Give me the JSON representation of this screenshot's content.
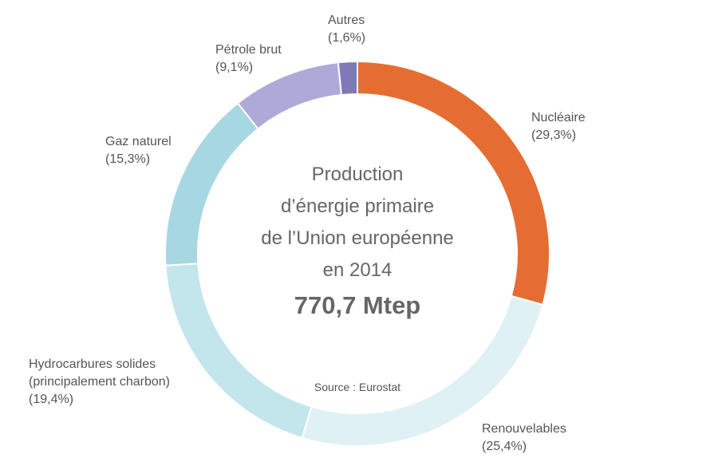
{
  "chart_data": {
    "type": "pie",
    "variant": "donut",
    "title_lines": [
      "Production",
      "d’énergie primaire",
      "de l’Union européenne",
      "en 2014"
    ],
    "total": "770,7 Mtep",
    "source": "Source : Eurostat",
    "slices": [
      {
        "name": "Nucléaire",
        "value": 29.3,
        "value_label": "(29,3%)",
        "color": "#e56d32"
      },
      {
        "name": "Renouvelables",
        "value": 25.4,
        "value_label": "(25,4%)",
        "color": "#dff1f5"
      },
      {
        "name_lines": [
          "Hydrocarbures solides",
          "(principalement charbon)"
        ],
        "value": 19.4,
        "value_label": "(19,4%)",
        "color": "#c3e5ec"
      },
      {
        "name": "Gaz naturel",
        "value": 15.3,
        "value_label": "(15,3%)",
        "color": "#a7d8e2"
      },
      {
        "name": "Pétrole brut",
        "value": 9.1,
        "value_label": "(9,1%)",
        "color": "#aeaad8"
      },
      {
        "name": "Autres",
        "value": 1.6,
        "value_label": "(1,6%)",
        "color": "#8079b8"
      }
    ]
  }
}
